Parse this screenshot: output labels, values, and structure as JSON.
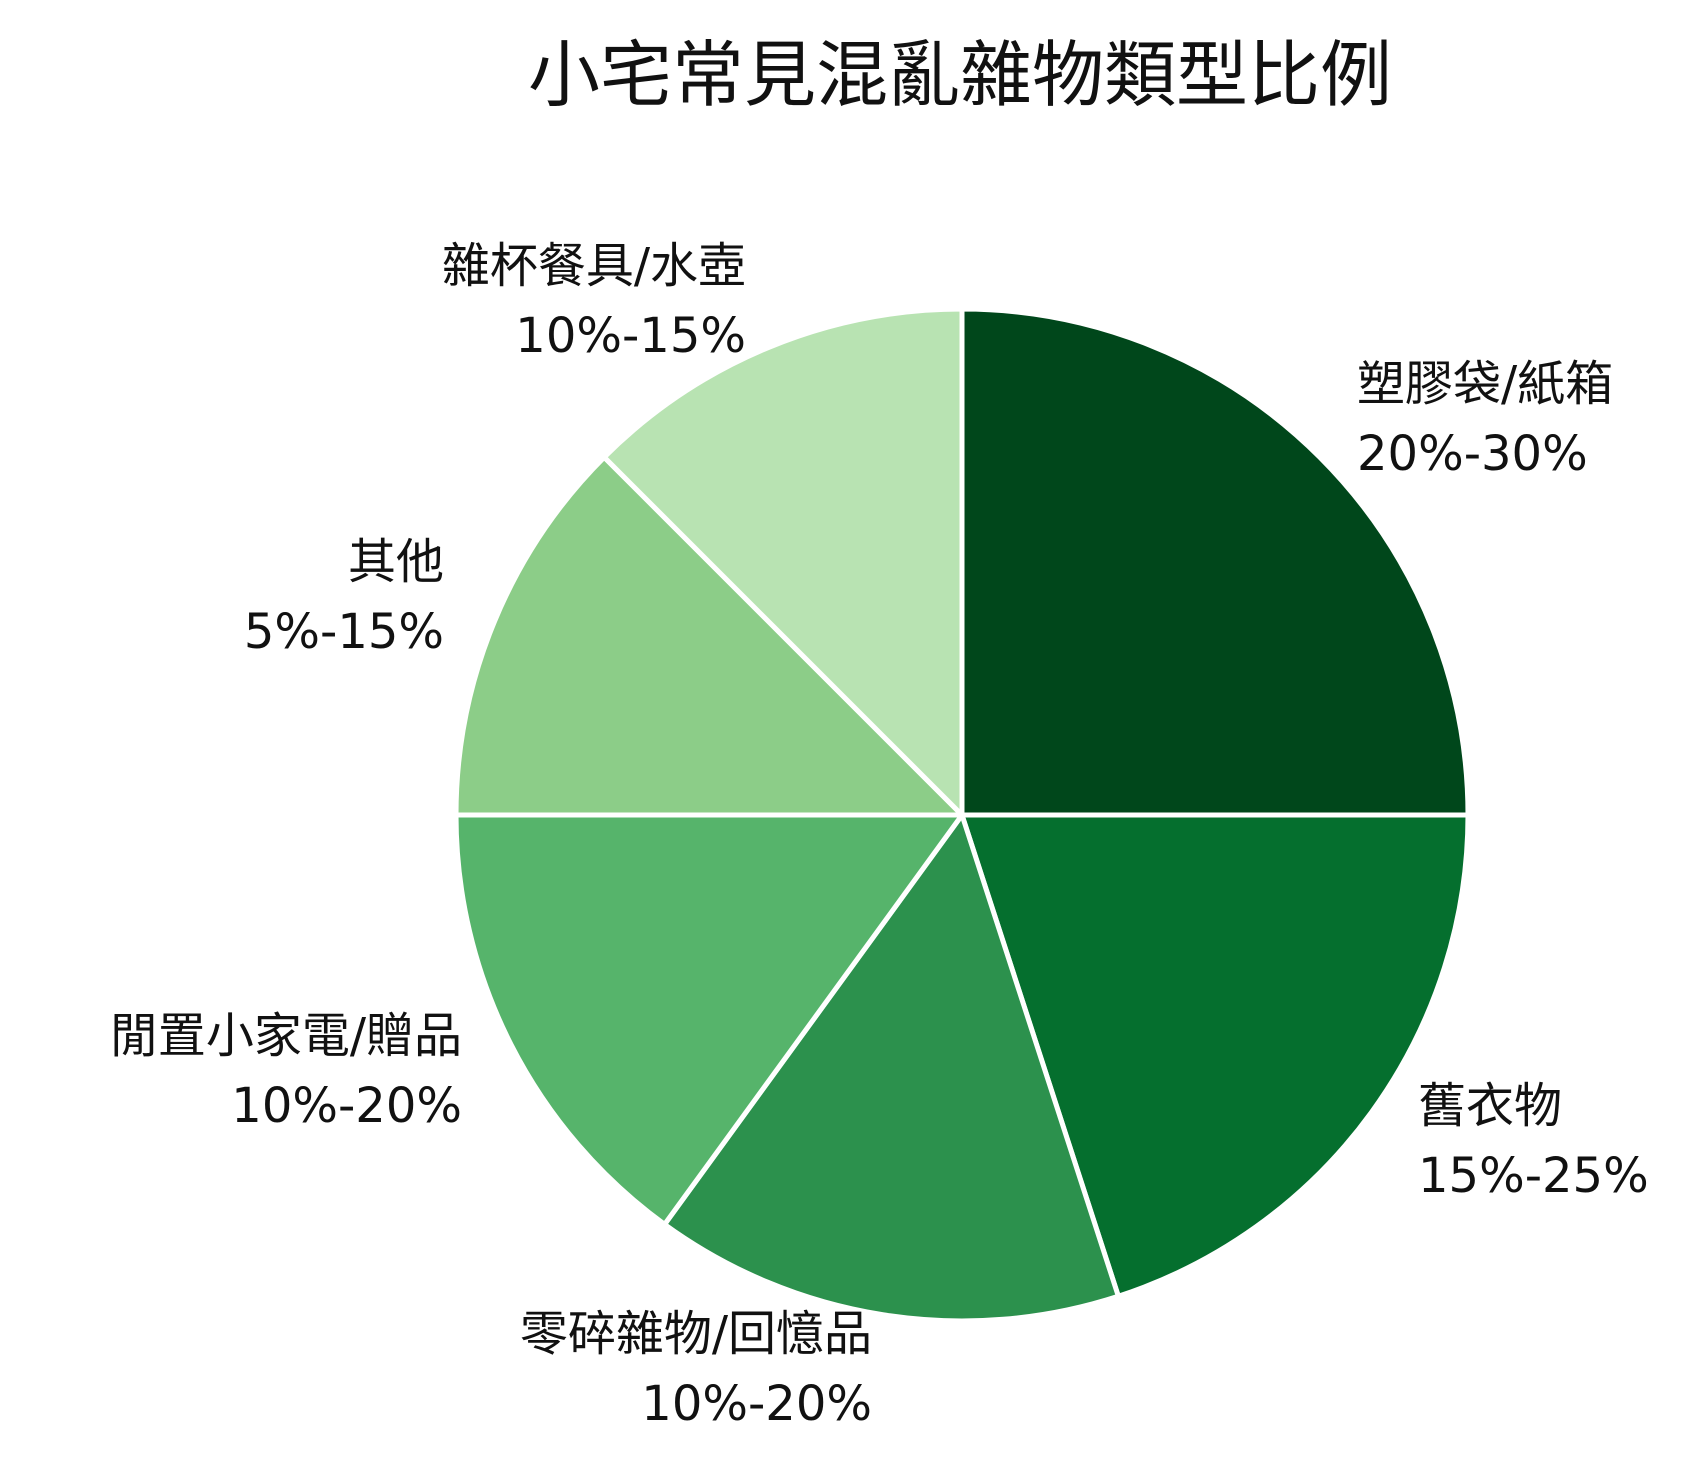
{
  "chart_data": {
    "type": "pie",
    "title": "小宅常見混亂雜物類型比例",
    "slices": [
      {
        "label": "塑膠袋/紙箱",
        "range": "20%-30%",
        "value": 25,
        "color": "#00471b"
      },
      {
        "label": "舊衣物",
        "range": "15%-25%",
        "value": 20,
        "color": "#056f2e"
      },
      {
        "label": "零碎雜物/回憶品",
        "range": "10%-20%",
        "value": 15,
        "color": "#2c914d"
      },
      {
        "label": "閒置小家電/贈品",
        "range": "10%-20%",
        "value": 15,
        "color": "#56b46b"
      },
      {
        "label": "其他",
        "range": "5%-15%",
        "value": 12.5,
        "color": "#8ccd88"
      },
      {
        "label": "雜杯餐具/水壺",
        "range": "10%-15%",
        "value": 12.5,
        "color": "#b8e3b2"
      }
    ],
    "start": "12-o'clock",
    "direction": "clockwise",
    "legend": "none"
  }
}
